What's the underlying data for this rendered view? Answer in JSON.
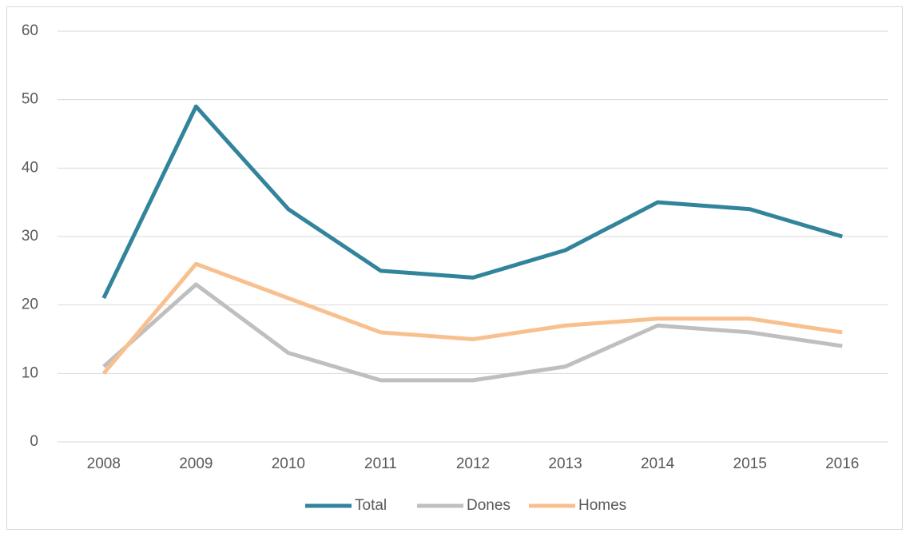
{
  "chart_data": {
    "type": "line",
    "categories": [
      "2008",
      "2009",
      "2010",
      "2011",
      "2012",
      "2013",
      "2014",
      "2015",
      "2016"
    ],
    "series": [
      {
        "name": "Total",
        "color": "#31849b",
        "values": [
          21,
          49,
          34,
          25,
          24,
          28,
          35,
          34,
          30
        ]
      },
      {
        "name": "Dones",
        "color": "#bfbfbf",
        "values": [
          11,
          23,
          13,
          9,
          9,
          11,
          17,
          16,
          14
        ]
      },
      {
        "name": "Homes",
        "color": "#f9c08f",
        "values": [
          10,
          26,
          21,
          16,
          15,
          17,
          18,
          18,
          16
        ]
      }
    ],
    "ylim": [
      0,
      60
    ],
    "yticks": [
      0,
      10,
      20,
      30,
      40,
      50,
      60
    ],
    "grid": true,
    "legend": "bottom"
  }
}
